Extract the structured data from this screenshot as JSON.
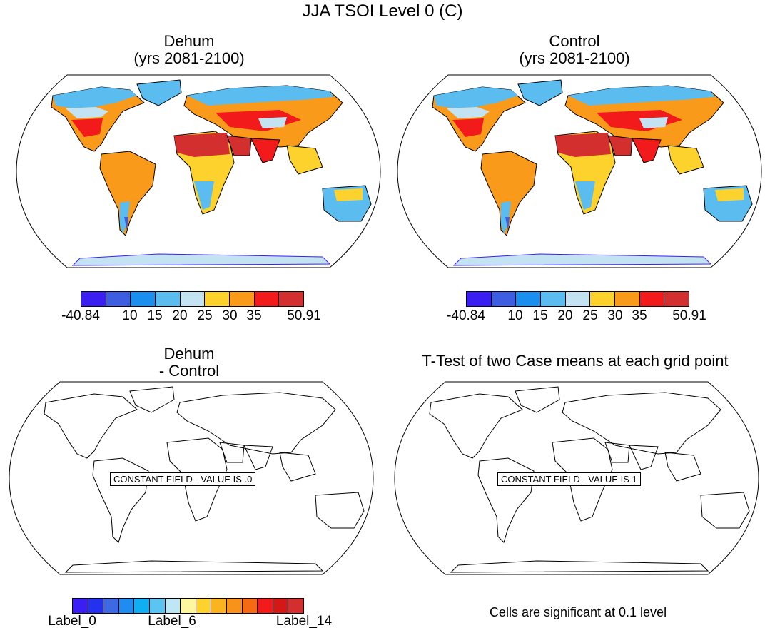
{
  "figure_title": "JJA TSOI Level 0 (C)",
  "panels": {
    "top_left": {
      "title_line1": "Dehum",
      "title_line2": "(yrs 2081-2100)"
    },
    "top_right": {
      "title_line1": "Control",
      "title_line2": "(yrs 2081-2100)"
    },
    "bottom_left": {
      "title_line1": "Dehum",
      "title_line2": "- Control",
      "constant_label": "CONSTANT FIELD - VALUE IS .0"
    },
    "bottom_right": {
      "title": "T-Test of two Case means at each grid point",
      "constant_label": "CONSTANT FIELD - VALUE IS 1",
      "note": "Cells are significant at 0.1 level"
    }
  },
  "colorbar_top": {
    "colors": [
      "#3b1ef2",
      "#3d5ee0",
      "#1a8ff0",
      "#5bbcf0",
      "#c4e3f2",
      "#fdd22c",
      "#fa9a1a",
      "#f21a1a",
      "#d42f2f"
    ],
    "labels": [
      "-40.84",
      "10",
      "15",
      "20",
      "25",
      "30",
      "35",
      "50.91"
    ]
  },
  "colorbar_bottom": {
    "colors": [
      "#3b1ef2",
      "#2432f0",
      "#3d6ae2",
      "#1e8cf0",
      "#10aef2",
      "#5bc4f0",
      "#bfe6f4",
      "#fff6a0",
      "#fdd22c",
      "#fbb41e",
      "#f9921a",
      "#f56a12",
      "#f21a1a",
      "#d41818",
      "#d42f2f"
    ],
    "labels": [
      "Label_0",
      "Label_6",
      "Label_14"
    ]
  },
  "colors": {
    "ocean": "#ffffff",
    "coast": "#000000",
    "land_hot": "#d42f2f",
    "land_cold": "#3b1ef2"
  }
}
